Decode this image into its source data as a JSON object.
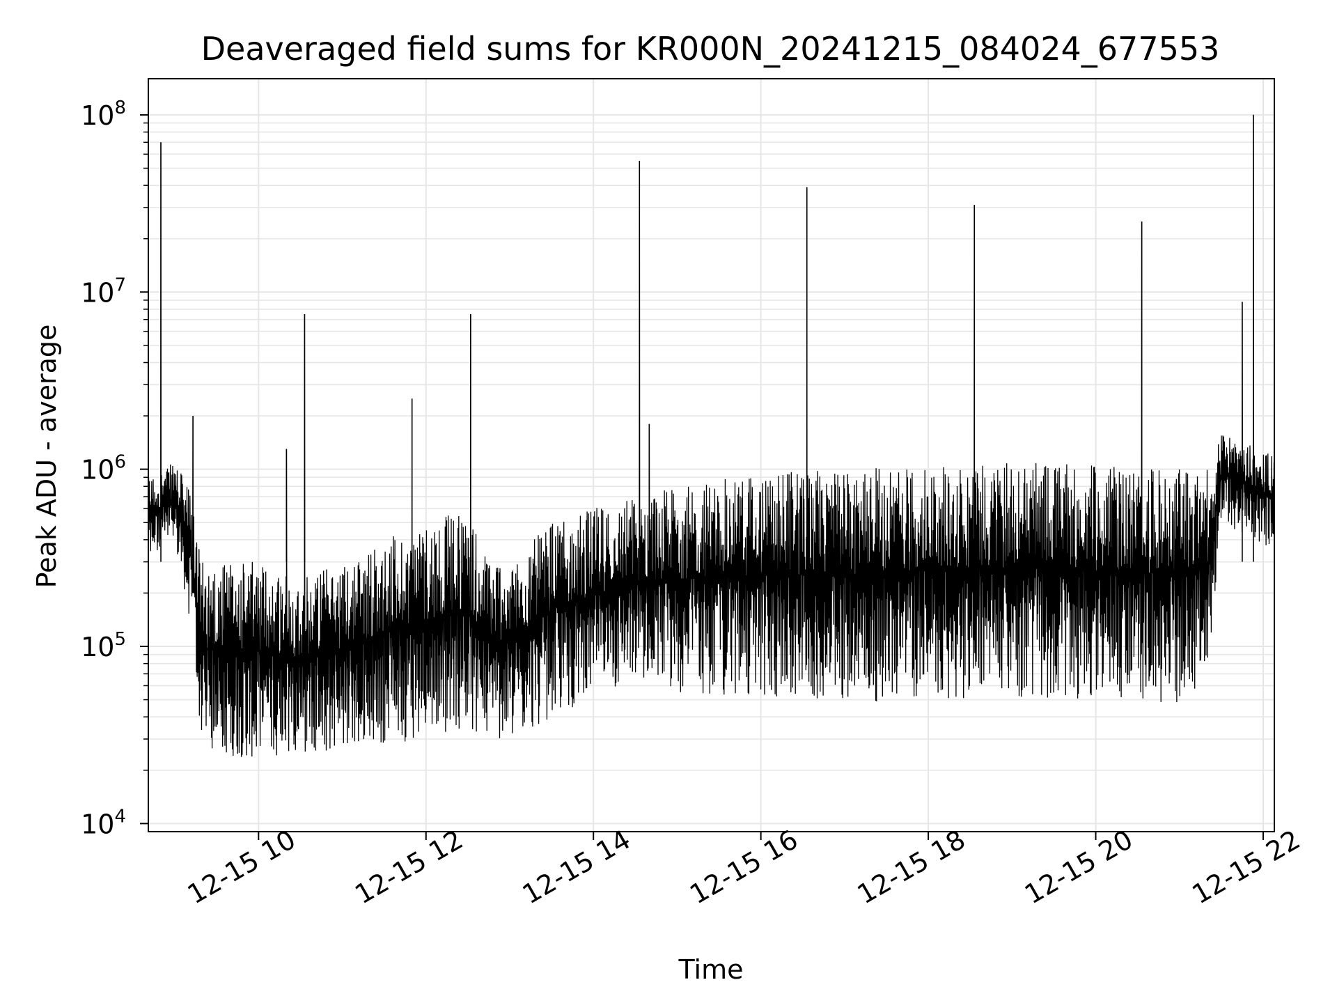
{
  "chart_data": {
    "type": "line",
    "title": "Deaveraged field sums for KR000N_20241215_084024_677553",
    "xlabel": "Time",
    "ylabel": "Peak ADU - average",
    "yscale": "log",
    "grid": true,
    "legend": "none",
    "line_color": "#000000",
    "xlim": [
      "2024-12-15 08:41",
      "2024-12-15 22:08"
    ],
    "ylim": [
      9000,
      160000000
    ],
    "x_ticks": [
      {
        "value": "2024-12-15 10:00",
        "label": "12-15 10"
      },
      {
        "value": "2024-12-15 12:00",
        "label": "12-15 12"
      },
      {
        "value": "2024-12-15 14:00",
        "label": "12-15 14"
      },
      {
        "value": "2024-12-15 16:00",
        "label": "12-15 16"
      },
      {
        "value": "2024-12-15 18:00",
        "label": "12-15 18"
      },
      {
        "value": "2024-12-15 20:00",
        "label": "12-15 20"
      },
      {
        "value": "2024-12-15 22:00",
        "label": "12-15 22"
      }
    ],
    "y_ticks": [
      {
        "value": 10000,
        "base": "10",
        "exp": "4"
      },
      {
        "value": 100000,
        "base": "10",
        "exp": "5"
      },
      {
        "value": 1000000,
        "base": "10",
        "exp": "6"
      },
      {
        "value": 10000000,
        "base": "10",
        "exp": "7"
      },
      {
        "value": 100000000,
        "base": "10",
        "exp": "8"
      }
    ],
    "envelope": {
      "description_points_time": [
        "2024-12-15 08:41",
        "2024-12-15 09:00",
        "2024-12-15 09:10",
        "2024-12-15 09:20",
        "2024-12-15 10:00",
        "2024-12-15 10:30",
        "2024-12-15 11:00",
        "2024-12-15 11:30",
        "2024-12-15 12:00",
        "2024-12-15 12:30",
        "2024-12-15 12:40",
        "2024-12-15 13:00",
        "2024-12-15 13:30",
        "2024-12-15 14:00",
        "2024-12-15 14:30",
        "2024-12-15 15:00",
        "2024-12-15 16:00",
        "2024-12-15 17:00",
        "2024-12-15 18:00",
        "2024-12-15 19:00",
        "2024-12-15 20:00",
        "2024-12-15 21:00",
        "2024-12-15 21:20",
        "2024-12-15 21:30",
        "2024-12-15 22:08"
      ],
      "low": [
        300000,
        400000,
        150000,
        25000,
        23000,
        24000,
        25000,
        28000,
        30000,
        35000,
        30000,
        28000,
        40000,
        50000,
        60000,
        55000,
        50000,
        48000,
        50000,
        52000,
        50000,
        48000,
        60000,
        500000,
        350000
      ],
      "high": [
        900000,
        1100000,
        800000,
        300000,
        300000,
        250000,
        300000,
        400000,
        500000,
        600000,
        350000,
        300000,
        500000,
        600000,
        700000,
        800000,
        950000,
        1000000,
        1050000,
        1100000,
        1050000,
        1000000,
        1000000,
        1600000,
        1200000
      ]
    },
    "spikes": [
      {
        "time": "2024-12-15 08:50",
        "value": 70000000
      },
      {
        "time": "2024-12-15 09:13",
        "value": 2000000
      },
      {
        "time": "2024-12-15 10:20",
        "value": 1300000
      },
      {
        "time": "2024-12-15 10:33",
        "value": 7500000
      },
      {
        "time": "2024-12-15 11:50",
        "value": 2500000
      },
      {
        "time": "2024-12-15 12:32",
        "value": 7500000
      },
      {
        "time": "2024-12-15 14:33",
        "value": 55000000
      },
      {
        "time": "2024-12-15 14:40",
        "value": 1800000
      },
      {
        "time": "2024-12-15 16:33",
        "value": 39000000
      },
      {
        "time": "2024-12-15 18:33",
        "value": 31000000
      },
      {
        "time": "2024-12-15 20:33",
        "value": 25000000
      },
      {
        "time": "2024-12-15 21:45",
        "value": 8800000
      },
      {
        "time": "2024-12-15 21:53",
        "value": 100000000
      }
    ]
  }
}
